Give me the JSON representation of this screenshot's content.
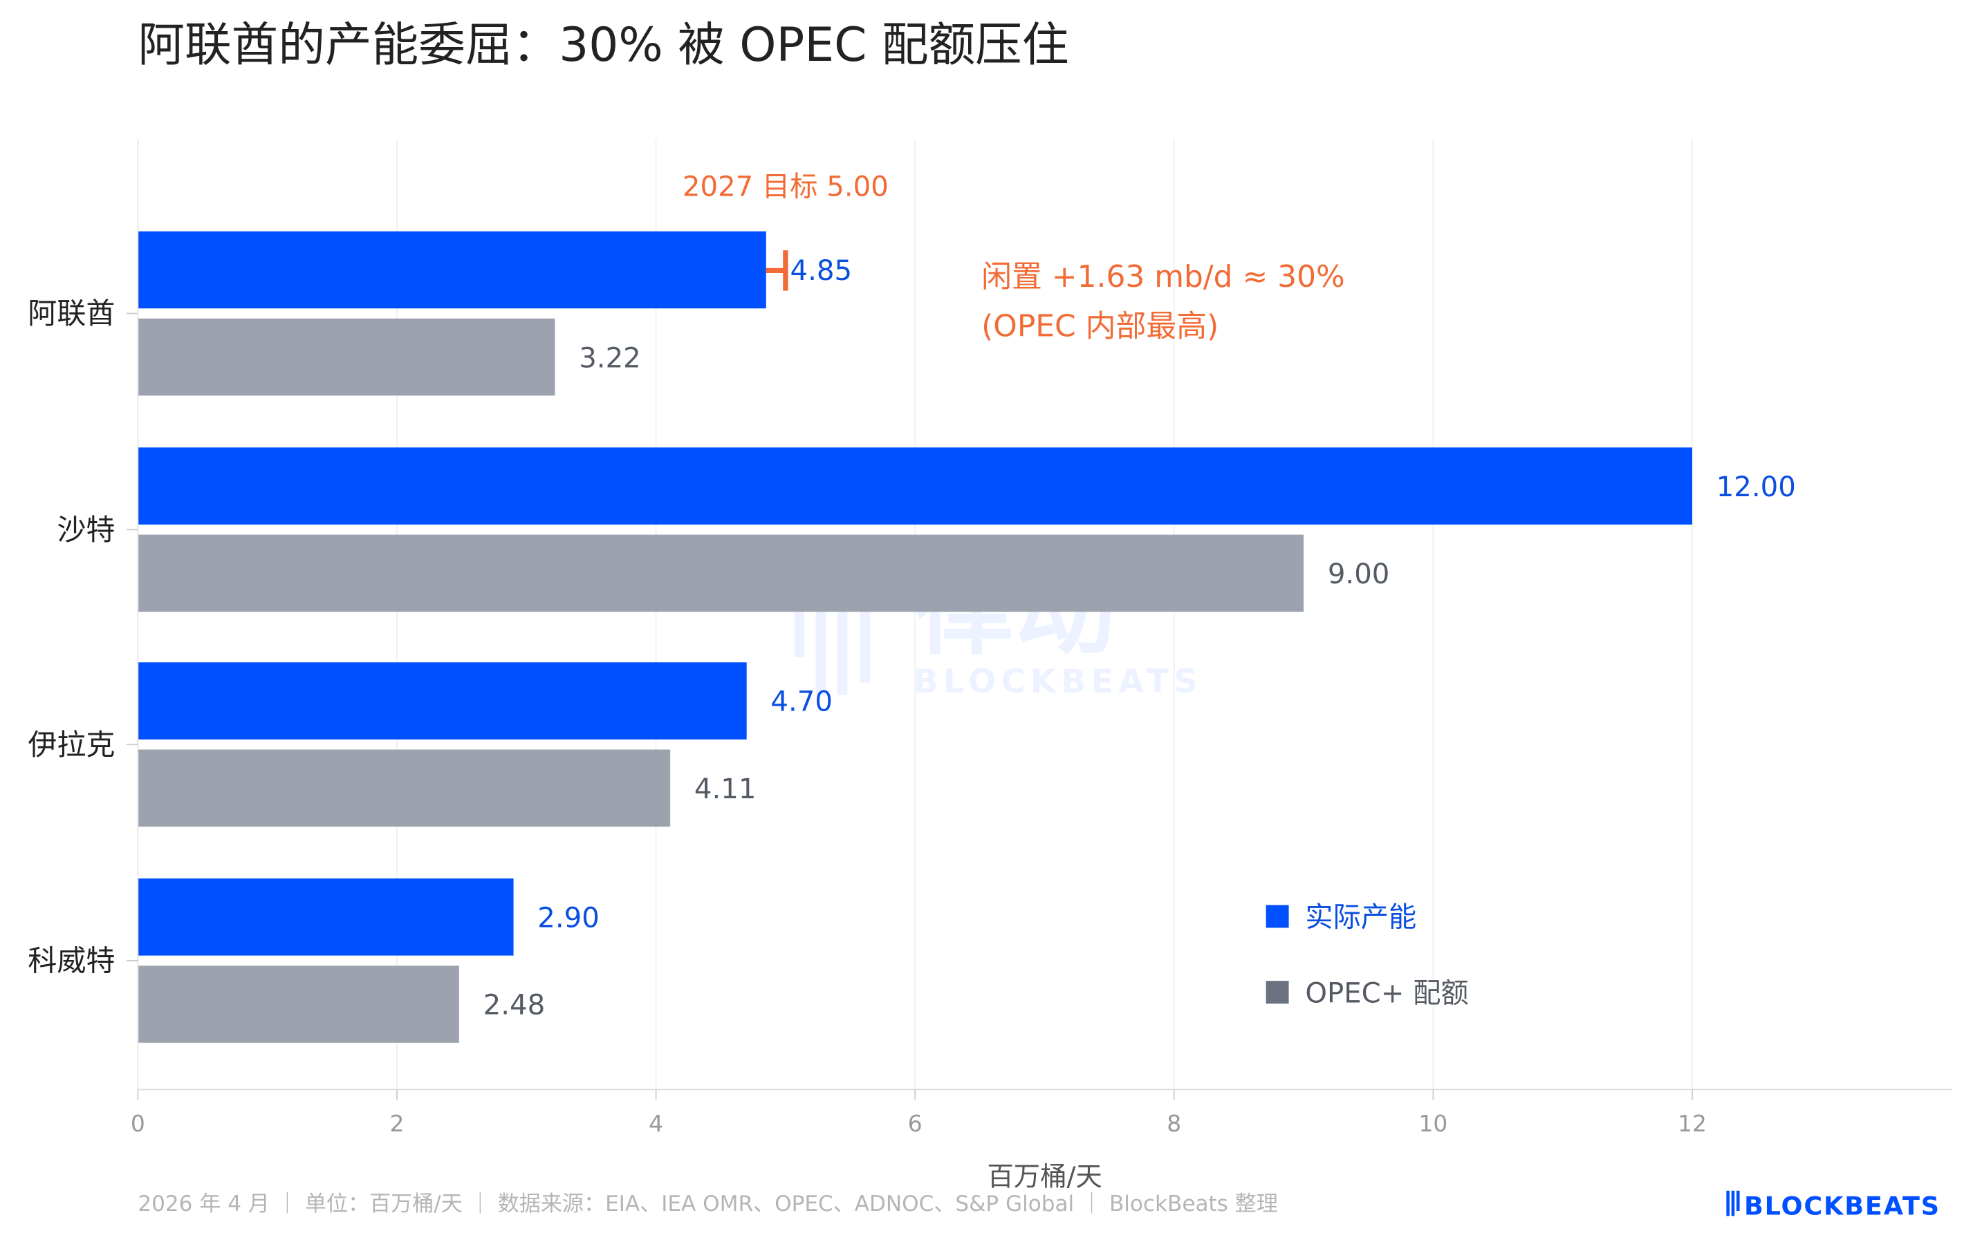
{
  "title": "阿联酋的产能委屈：30% 被 OPEC 配额压住",
  "chart_data": {
    "type": "bar",
    "orientation": "horizontal",
    "categories": [
      "阿联酋",
      "沙特",
      "伊拉克",
      "科威特"
    ],
    "series": [
      {
        "name": "实际产能",
        "color": "#0050FF",
        "label_color": "#0a4fe0",
        "values": [
          4.85,
          12.0,
          4.7,
          2.9
        ]
      },
      {
        "name": "OPEC+ 配额",
        "color": "#9CA3AF",
        "legend_color": "#6B7280",
        "label_color": "#555b63",
        "values": [
          3.22,
          9.0,
          4.11,
          2.48
        ]
      }
    ],
    "xlabel": "百万桶/天",
    "xlim": [
      0,
      14
    ],
    "xticks": [
      0,
      2,
      4,
      6,
      8,
      10,
      12
    ],
    "grid": "vertical",
    "legend_position": "bottom-right",
    "annotations": {
      "target": {
        "category": "阿联酋",
        "value": 5.0,
        "label": "2027 目标 5.00",
        "color": "#F26B35"
      },
      "spare_line1": "闲置 +1.63 mb/d ≈ 30%",
      "spare_line2": "(OPEC 内部最高)"
    }
  },
  "footer": "2026 年 4 月 ｜ 单位：百万桶/天 ｜ 数据来源：EIA、IEA OMR、OPEC、ADNOC、S&P Global ｜ BlockBeats 整理",
  "watermark": {
    "cn": "律动",
    "en": "BLOCKBEATS"
  },
  "logo": "BLOCKBEATS"
}
